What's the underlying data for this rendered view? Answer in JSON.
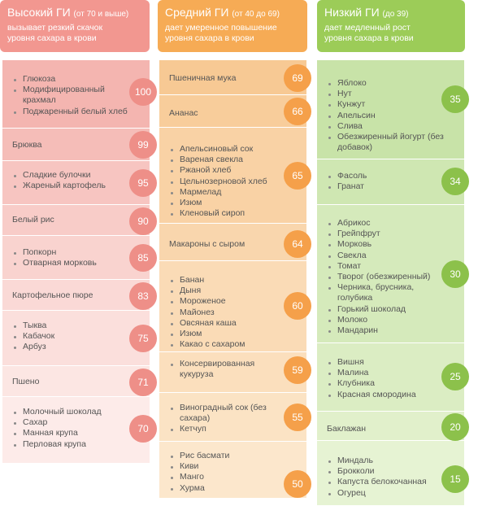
{
  "headers": {
    "high": {
      "title": "Высокий ГИ",
      "range": "(от 70 и выше)",
      "desc1": "вызывает резкий скачок",
      "desc2": "уровня сахара в крови"
    },
    "mid": {
      "title": "Средний ГИ",
      "range": "(от 40 до 69)",
      "desc1": "дает умеренное повышение",
      "desc2": "уровня сахара в крови"
    },
    "low": {
      "title": "Низкий ГИ",
      "range": "(до 39)",
      "desc1": "дает медленный рост",
      "desc2": "уровня сахара в крови"
    }
  },
  "colors": {
    "high_header": "#f29790",
    "mid_header": "#f6ab55",
    "low_header": "#9ccc58",
    "high_circle": "#ee8f88",
    "mid_circle": "#f5a04a",
    "low_circle": "#8cc14b"
  },
  "high": [
    {
      "gi": "100",
      "items": [
        "Глюкоза",
        "Модифицированный",
        "крахмал",
        "Поджаренный белый хлеб"
      ]
    },
    {
      "gi": "99",
      "items": [
        "Брюква"
      ]
    },
    {
      "gi": "95",
      "items": [
        "Сладкие булочки",
        "Жареный картофель"
      ]
    },
    {
      "gi": "90",
      "items": [
        "Белый рис"
      ]
    },
    {
      "gi": "85",
      "items": [
        "Попкорн",
        "Отварная морковь"
      ]
    },
    {
      "gi": "83",
      "items": [
        "Картофельное пюре"
      ]
    },
    {
      "gi": "75",
      "items": [
        "Тыква",
        "Кабачок",
        "Арбуз"
      ]
    },
    {
      "gi": "71",
      "items": [
        "Пшено"
      ]
    },
    {
      "gi": "70",
      "items": [
        "Молочный шоколад",
        "Сахар",
        "Манная крупа",
        "Перловая крупа"
      ]
    }
  ],
  "mid": [
    {
      "gi": "69",
      "items": [
        "Пшеничная мука"
      ]
    },
    {
      "gi": "66",
      "items": [
        "Ананас"
      ]
    },
    {
      "gi": "65",
      "items": [
        "Апельсиновый сок",
        "Вареная свекла",
        "Ржаной хлеб",
        "Цельнозерновой хлеб",
        "Мармелад",
        "Изюм",
        "Кленовый сироп"
      ]
    },
    {
      "gi": "64",
      "items": [
        "Макароны с сыром"
      ]
    },
    {
      "gi": "60",
      "items": [
        "Банан",
        "Дыня",
        "Мороженое",
        "Майонез",
        "Овсяная каша",
        "Изюм",
        "Какао с сахаром"
      ]
    },
    {
      "gi": "59",
      "items": [
        "Консервированная",
        "кукуруза"
      ]
    },
    {
      "gi": "55",
      "items": [
        "Виноградный сок (без",
        "сахара)",
        "Кетчуп"
      ]
    },
    {
      "gi": "50",
      "items": [
        "Рис басмати",
        "Киви",
        "Манго",
        "Хурма"
      ]
    }
  ],
  "low": [
    {
      "gi": "35",
      "items": [
        "Яблоко",
        "Нут",
        "Кунжут",
        "Апельсин",
        "Слива",
        "Обезжиренный йогурт (без",
        "добавок)"
      ]
    },
    {
      "gi": "34",
      "items": [
        "Фасоль",
        "Гранат"
      ]
    },
    {
      "gi": "30",
      "items": [
        "Абрикос",
        "Грейпфрут",
        "Морковь",
        "Свекла",
        "Томат",
        "Творог (обезжиренный)",
        "Черника, брусника,",
        "голубика",
        "Горький шоколад",
        "Молоко",
        "Мандарин"
      ]
    },
    {
      "gi": "25",
      "items": [
        "Вишня",
        "Малина",
        "Клубника",
        "Красная смородина"
      ]
    },
    {
      "gi": "20",
      "items": [
        "Баклажан"
      ]
    },
    {
      "gi": "15",
      "items": [
        "Миндаль",
        "Брокколи",
        "Капуста белокочанная",
        "Огурец"
      ]
    }
  ]
}
